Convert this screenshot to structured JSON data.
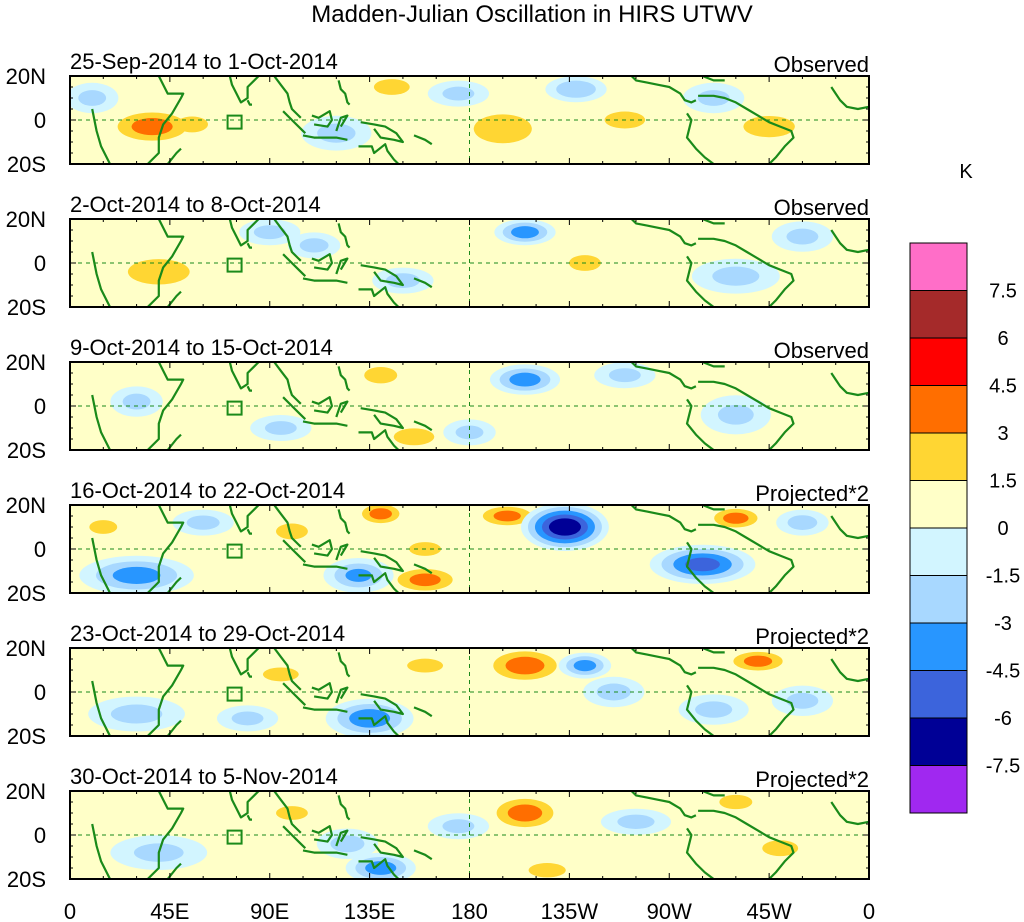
{
  "chart_data": {
    "type": "heatmap",
    "title": "Madden-Julian Oscillation in HIRS UTWV",
    "units": "K",
    "ytick_labels": [
      "20N",
      "0",
      "20S"
    ],
    "xtick_labels": [
      "0",
      "45E",
      "90E",
      "135E",
      "180",
      "135W",
      "90W",
      "45W",
      "0"
    ],
    "xlim_deg_east": [
      0,
      360
    ],
    "ylim_deg": [
      -20,
      20
    ],
    "colorbar": {
      "labels": [
        "7.5",
        "6",
        "4.5",
        "3",
        "1.5",
        "0",
        "-1.5",
        "-3",
        "-4.5",
        "-6",
        "-7.5"
      ],
      "colors": [
        "#ff6ec8",
        "#a52a2a",
        "#ff0000",
        "#ff6e00",
        "#ffd633",
        "#ffffc8",
        "#d2f5ff",
        "#a8d8ff",
        "#2896ff",
        "#3c64dc",
        "#000096",
        "#a028f0"
      ]
    },
    "panels": [
      {
        "date_range": "25-Sep-2014 to 1-Oct-2014",
        "kind": "Observed",
        "blobs": [
          {
            "lon": 37,
            "lat": -3,
            "rlon": 20,
            "rlat": 8,
            "v": 3.5
          },
          {
            "lon": 55,
            "lat": -2,
            "rlon": 12,
            "rlat": 6,
            "v": 1.6
          },
          {
            "lon": 145,
            "lat": 15,
            "rlon": 14,
            "rlat": 6,
            "v": 1.6
          },
          {
            "lon": 195,
            "lat": -4,
            "rlon": 18,
            "rlat": 9,
            "v": 2.8
          },
          {
            "lon": 250,
            "lat": 0,
            "rlon": 15,
            "rlat": 6,
            "v": 1.8
          },
          {
            "lon": 315,
            "lat": -3,
            "rlon": 20,
            "rlat": 8,
            "v": 1.8
          },
          {
            "lon": 228,
            "lat": 14,
            "rlon": 12,
            "rlat": 5,
            "v": -2.5
          },
          {
            "lon": 120,
            "lat": -6,
            "rlon": 14,
            "rlat": 7,
            "v": -1.8
          },
          {
            "lon": 290,
            "lat": 10,
            "rlon": 12,
            "rlat": 6,
            "v": -1.6
          },
          {
            "lon": 10,
            "lat": 10,
            "rlon": 10,
            "rlat": 6,
            "v": -1.6
          },
          {
            "lon": 175,
            "lat": 12,
            "rlon": 12,
            "rlat": 5,
            "v": -1.6
          }
        ]
      },
      {
        "date_range": "2-Oct-2014 to 8-Oct-2014",
        "kind": "Observed",
        "blobs": [
          {
            "lon": 40,
            "lat": -4,
            "rlon": 20,
            "rlat": 8,
            "v": 2.6
          },
          {
            "lon": 110,
            "lat": 8,
            "rlon": 10,
            "rlat": 5,
            "v": -1.7
          },
          {
            "lon": 150,
            "lat": -8,
            "rlon": 12,
            "rlat": 5,
            "v": -1.8
          },
          {
            "lon": 205,
            "lat": 14,
            "rlon": 12,
            "rlat": 5,
            "v": -3.5
          },
          {
            "lon": 232,
            "lat": 0,
            "rlon": 12,
            "rlat": 6,
            "v": 1.6
          },
          {
            "lon": 300,
            "lat": -6,
            "rlon": 18,
            "rlat": 7,
            "v": -1.8
          },
          {
            "lon": 330,
            "lat": 12,
            "rlon": 12,
            "rlat": 6,
            "v": -1.6
          },
          {
            "lon": 90,
            "lat": 14,
            "rlon": 12,
            "rlat": 5,
            "v": -1.6
          }
        ]
      },
      {
        "date_range": "9-Oct-2014 to 15-Oct-2014",
        "kind": "Observed",
        "blobs": [
          {
            "lon": 140,
            "lat": 14,
            "rlon": 12,
            "rlat": 6,
            "v": 1.7
          },
          {
            "lon": 155,
            "lat": -14,
            "rlon": 15,
            "rlat": 6,
            "v": 1.8
          },
          {
            "lon": 205,
            "lat": 12,
            "rlon": 14,
            "rlat": 6,
            "v": -3.5
          },
          {
            "lon": 250,
            "lat": 14,
            "rlon": 12,
            "rlat": 5,
            "v": -1.6
          },
          {
            "lon": 300,
            "lat": -4,
            "rlon": 14,
            "rlat": 8,
            "v": -1.6
          },
          {
            "lon": 95,
            "lat": -10,
            "rlon": 12,
            "rlat": 5,
            "v": -1.6
          },
          {
            "lon": 30,
            "lat": 2,
            "rlon": 10,
            "rlat": 6,
            "v": -1.6
          },
          {
            "lon": 180,
            "lat": -12,
            "rlon": 10,
            "rlat": 5,
            "v": -1.6
          }
        ]
      },
      {
        "date_range": "16-Oct-2014 to 22-Oct-2014",
        "kind": "Projected*2",
        "blobs": [
          {
            "lon": 30,
            "lat": -12,
            "rlon": 24,
            "rlat": 8,
            "v": -3.5
          },
          {
            "lon": 130,
            "lat": -12,
            "rlon": 14,
            "rlat": 7,
            "v": -3.0
          },
          {
            "lon": 160,
            "lat": -14,
            "rlon": 16,
            "rlat": 6,
            "v": 3.2
          },
          {
            "lon": 140,
            "lat": 16,
            "rlon": 10,
            "rlat": 5,
            "v": 3.2
          },
          {
            "lon": 160,
            "lat": 0,
            "rlon": 12,
            "rlat": 5,
            "v": 1.6
          },
          {
            "lon": 197,
            "lat": 15,
            "rlon": 14,
            "rlat": 5,
            "v": 3.1
          },
          {
            "lon": 223,
            "lat": 10,
            "rlon": 18,
            "rlat": 10,
            "v": -7.0
          },
          {
            "lon": 285,
            "lat": -7,
            "rlon": 22,
            "rlat": 8,
            "v": -4.8
          },
          {
            "lon": 300,
            "lat": 14,
            "rlon": 12,
            "rlat": 5,
            "v": 3.2
          },
          {
            "lon": 330,
            "lat": 12,
            "rlon": 10,
            "rlat": 5,
            "v": -1.8
          },
          {
            "lon": 60,
            "lat": 12,
            "rlon": 12,
            "rlat": 5,
            "v": -1.7
          },
          {
            "lon": 100,
            "lat": 8,
            "rlon": 12,
            "rlat": 6,
            "v": 1.6
          },
          {
            "lon": 15,
            "lat": 10,
            "rlon": 10,
            "rlat": 5,
            "v": 1.6
          }
        ]
      },
      {
        "date_range": "23-Oct-2014 to 29-Oct-2014",
        "kind": "Projected*2",
        "blobs": [
          {
            "lon": 135,
            "lat": -12,
            "rlon": 18,
            "rlat": 8,
            "v": -3.8
          },
          {
            "lon": 205,
            "lat": 12,
            "rlon": 18,
            "rlat": 8,
            "v": 3.6
          },
          {
            "lon": 232,
            "lat": 12,
            "rlon": 10,
            "rlat": 5,
            "v": -3.2
          },
          {
            "lon": 245,
            "lat": 0,
            "rlon": 12,
            "rlat": 6,
            "v": -1.8
          },
          {
            "lon": 310,
            "lat": 14,
            "rlon": 14,
            "rlat": 5,
            "v": 3.2
          },
          {
            "lon": 290,
            "lat": -8,
            "rlon": 14,
            "rlat": 6,
            "v": -1.7
          },
          {
            "lon": 30,
            "lat": -10,
            "rlon": 20,
            "rlat": 7,
            "v": -1.8
          },
          {
            "lon": 95,
            "lat": 8,
            "rlon": 14,
            "rlat": 5,
            "v": 1.6
          },
          {
            "lon": 160,
            "lat": 12,
            "rlon": 14,
            "rlat": 5,
            "v": 1.6
          },
          {
            "lon": 80,
            "lat": -12,
            "rlon": 12,
            "rlat": 5,
            "v": -1.6
          },
          {
            "lon": 330,
            "lat": -4,
            "rlon": 12,
            "rlat": 6,
            "v": -1.6
          }
        ]
      },
      {
        "date_range": "30-Oct-2014 to 5-Nov-2014",
        "kind": "Projected*2",
        "blobs": [
          {
            "lon": 205,
            "lat": 10,
            "rlon": 16,
            "rlat": 8,
            "v": 3.5
          },
          {
            "lon": 140,
            "lat": -15,
            "rlon": 14,
            "rlat": 6,
            "v": -3.5
          },
          {
            "lon": 125,
            "lat": -4,
            "rlon": 12,
            "rlat": 6,
            "v": -1.8
          },
          {
            "lon": 300,
            "lat": 15,
            "rlon": 12,
            "rlat": 5,
            "v": 1.7
          },
          {
            "lon": 215,
            "lat": -16,
            "rlon": 14,
            "rlat": 5,
            "v": 1.7
          },
          {
            "lon": 40,
            "lat": -8,
            "rlon": 20,
            "rlat": 7,
            "v": -1.7
          },
          {
            "lon": 255,
            "lat": 6,
            "rlon": 14,
            "rlat": 5,
            "v": -1.7
          },
          {
            "lon": 100,
            "lat": 10,
            "rlon": 12,
            "rlat": 5,
            "v": 1.6
          },
          {
            "lon": 175,
            "lat": 4,
            "rlon": 12,
            "rlat": 5,
            "v": -1.6
          },
          {
            "lon": 320,
            "lat": -6,
            "rlon": 14,
            "rlat": 6,
            "v": 1.6
          }
        ]
      }
    ]
  }
}
